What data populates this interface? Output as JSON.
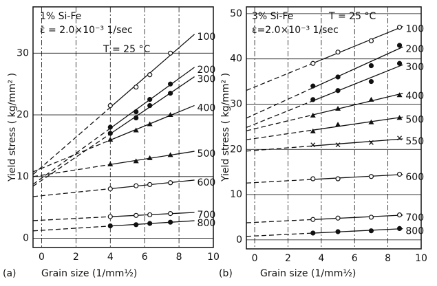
{
  "chart_data": [
    {
      "type": "scatter",
      "panel": "(a)",
      "annotations": [
        "1% Si-Fe",
        "ε̇ = 2.0×10⁻³ 1/sec",
        "T = 25 °C"
      ],
      "x_label": "Grain size (1/mm½)",
      "y_label": "Yield stress ( kg/mm² )",
      "xlim": [
        -0.5,
        10
      ],
      "ylim": [
        -1.5,
        37.5
      ],
      "xticks": [
        0,
        2,
        4,
        6,
        8,
        10
      ],
      "yticks": [
        0,
        10,
        20,
        30
      ],
      "grid": true,
      "color": "#111",
      "x": [
        4,
        5.5,
        6.3,
        7.5
      ],
      "series": [
        {
          "name": "100",
          "marker": "open",
          "values": [
            21.5,
            24.5,
            26.5,
            30
          ]
        },
        {
          "name": "200",
          "marker": "filled",
          "values": [
            18,
            20.5,
            22.5,
            25
          ]
        },
        {
          "name": "300",
          "marker": "filled",
          "values": [
            17,
            19.5,
            21.5,
            23.5
          ]
        },
        {
          "name": "400",
          "marker": "triangle",
          "values": [
            16,
            17.5,
            18.5,
            20
          ]
        },
        {
          "name": "500",
          "marker": "triangle",
          "values": [
            12,
            12.5,
            13,
            13.5
          ]
        },
        {
          "name": "600",
          "marker": "open",
          "values": [
            8,
            8.5,
            8.7,
            9
          ]
        },
        {
          "name": "700",
          "marker": "open",
          "values": [
            3.5,
            3.7,
            3.8,
            4
          ]
        },
        {
          "name": "800",
          "marker": "filled",
          "values": [
            2,
            2.2,
            2.4,
            2.6
          ]
        }
      ]
    },
    {
      "type": "scatter",
      "panel": "(b)",
      "annotations": [
        "3% Si-Fe",
        "ε̇=2.0×10⁻³ 1/sec",
        "T = 25 °C"
      ],
      "x_label": "Grain size (1/mm½)",
      "y_label": "Yield stress ( kg/mm² )",
      "xlim": [
        -0.5,
        10
      ],
      "ylim": [
        -2,
        51.5
      ],
      "xticks": [
        0,
        2,
        4,
        6,
        8,
        10
      ],
      "yticks": [
        0,
        10,
        20,
        30,
        40,
        50
      ],
      "grid": true,
      "color": "#111",
      "x": [
        3.5,
        5,
        7,
        8.7
      ],
      "series": [
        {
          "name": "100",
          "marker": "open",
          "values": [
            39,
            41.5,
            44,
            47
          ]
        },
        {
          "name": "200",
          "marker": "filled",
          "values": [
            34,
            36,
            38.5,
            43
          ]
        },
        {
          "name": "300",
          "marker": "filled",
          "values": [
            31,
            33,
            35,
            39
          ]
        },
        {
          "name": "400",
          "marker": "triangle",
          "values": [
            27.5,
            29,
            31,
            32
          ]
        },
        {
          "name": "500",
          "marker": "triangle",
          "values": [
            24,
            25.5,
            26,
            27
          ]
        },
        {
          "name": "550",
          "marker": "cross",
          "values": [
            21,
            21,
            21.5,
            22.5
          ]
        },
        {
          "name": "600",
          "marker": "open",
          "values": [
            13.5,
            13.5,
            14,
            14.5
          ]
        },
        {
          "name": "700",
          "marker": "open",
          "values": [
            4.5,
            4.8,
            5,
            5.5
          ]
        },
        {
          "name": "800",
          "marker": "filled",
          "values": [
            1.5,
            1.8,
            2,
            2.5
          ]
        }
      ]
    }
  ]
}
